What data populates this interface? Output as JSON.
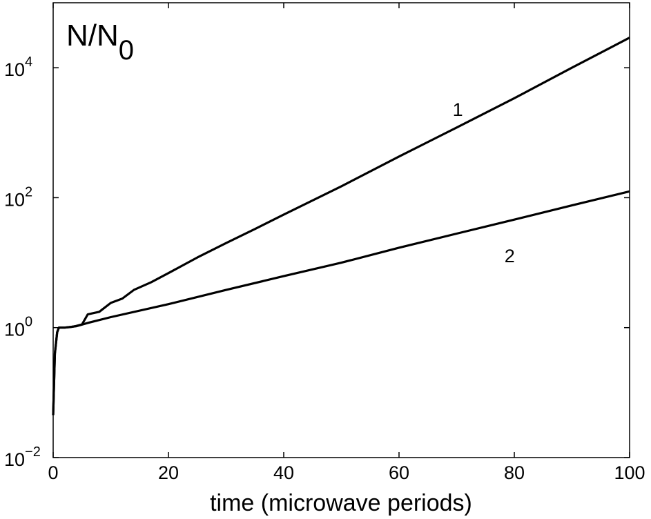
{
  "chart_data": {
    "type": "line",
    "title": "",
    "ylabel": "N/N",
    "ylabel_sub": "0",
    "xlabel": "time (microwave periods)",
    "xlim": [
      0,
      100
    ],
    "ylim": [
      0.01,
      100000
    ],
    "yscale": "log",
    "grid": false,
    "xticks": [
      0,
      20,
      40,
      60,
      80,
      100
    ],
    "xtick_labels": [
      "0",
      "20",
      "40",
      "60",
      "80",
      "100"
    ],
    "yticks": [
      0.01,
      1,
      100,
      10000
    ],
    "ytick_labels": [
      {
        "base": "10",
        "exp": "−2"
      },
      {
        "base": "10",
        "exp": "0"
      },
      {
        "base": "10",
        "exp": "2"
      },
      {
        "base": "10",
        "exp": "4"
      }
    ],
    "series": [
      {
        "label": "1",
        "color": "#000000",
        "x": [
          0,
          0.3,
          0.7,
          1.0,
          2,
          3,
          4,
          5,
          6,
          8,
          10,
          12,
          14,
          17,
          20,
          25,
          30,
          35,
          40,
          50,
          60,
          70,
          80,
          90,
          100
        ],
        "y": [
          0.045,
          0.4,
          0.85,
          1.0,
          1.0,
          1.02,
          1.06,
          1.12,
          1.6,
          1.75,
          2.4,
          2.8,
          3.8,
          5.0,
          6.9,
          12,
          20,
          33,
          55,
          150,
          430,
          1200,
          3400,
          10000,
          29000
        ]
      },
      {
        "label": "2",
        "color": "#000000",
        "x": [
          0,
          0.3,
          0.7,
          1.0,
          2,
          4,
          6,
          10,
          20,
          30,
          40,
          50,
          60,
          70,
          80,
          90,
          100
        ],
        "y": [
          0.045,
          0.4,
          0.85,
          1.0,
          1.0,
          1.05,
          1.18,
          1.45,
          2.3,
          3.8,
          6.2,
          10,
          17,
          28,
          46,
          76,
          125
        ]
      }
    ],
    "annotations": [
      {
        "text": "1",
        "x": 70.2,
        "y": 2300
      },
      {
        "text": "2",
        "x": 79.2,
        "y": 13
      }
    ]
  }
}
